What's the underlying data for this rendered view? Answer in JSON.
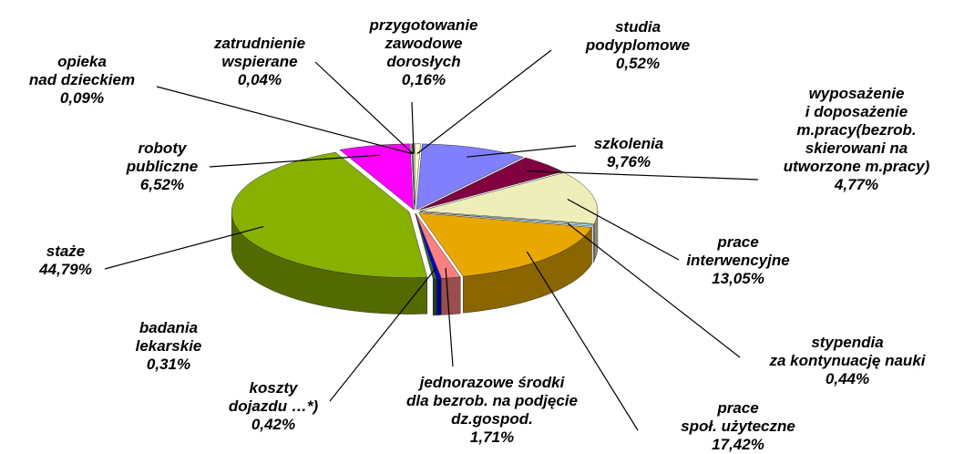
{
  "chart_data": {
    "type": "pie",
    "categories": [
      "studia\npodyplomowe",
      "szkolenia",
      "wyposażenie\ni doposażenie\nm.pracy(bezrob.\nskierowani na\nutworzone m.pracy)",
      "prace\ninterwencyjne",
      "stypendia\nza kontynuację nauki",
      "prace\nspoł. użyteczne",
      "jednorazowe środki\ndla bezrob. na podjęcie\ndz.gospod.",
      "koszty\ndojazdu …*)",
      "badania\nlekarskie",
      "staże",
      "roboty\npubliczne",
      "opieka\nnad dzieckiem",
      "zatrudnienie\nwspierane",
      "przygotowanie\nzawodowe\ndorosłych"
    ],
    "values": [
      0.52,
      9.76,
      4.77,
      13.05,
      0.44,
      17.42,
      1.71,
      0.42,
      0.31,
      44.79,
      6.52,
      0.09,
      0.04,
      0.16
    ],
    "value_labels": [
      "0,52%",
      "9,76%",
      "4,77%",
      "13,05%",
      "0,44%",
      "17,42%",
      "1,71%",
      "0,42%",
      "0,31%",
      "44,79%",
      "6,52%",
      "0,09%",
      "0,04%",
      "0,16%"
    ],
    "colors": [
      "#ffffcc",
      "#8080ff",
      "#800040",
      "#eeeebb",
      "#a0e0ff",
      "#e8a800",
      "#ff8080",
      "#0000cc",
      "#336633",
      "#88b000",
      "#ff00ff",
      "#c0c0c0",
      "#606060",
      "#f0f0f0"
    ]
  }
}
